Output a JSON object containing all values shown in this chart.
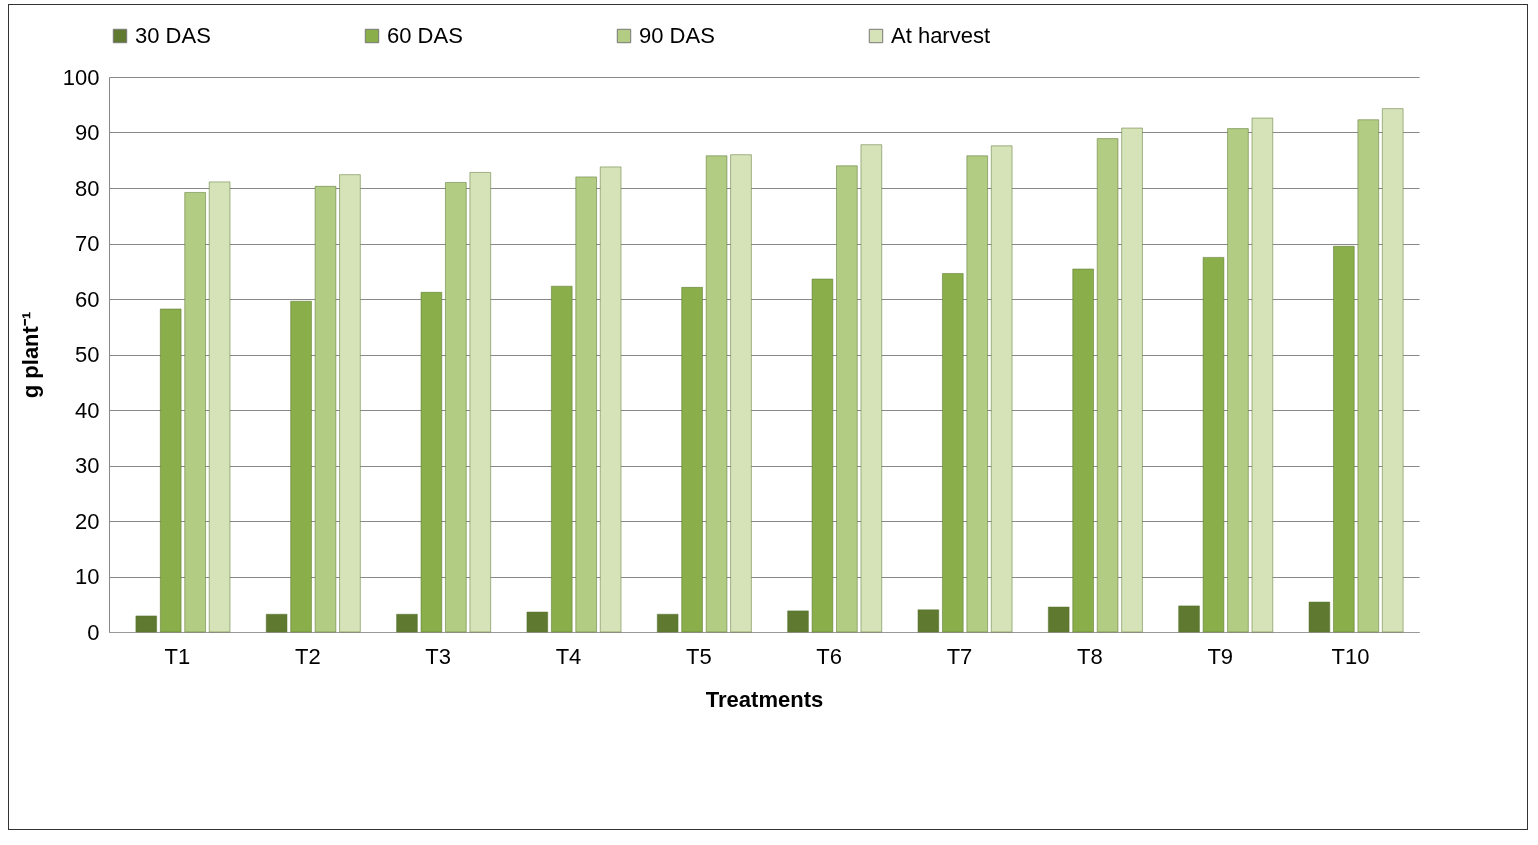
{
  "chart_data": {
    "type": "bar",
    "xlabel": "Treatments",
    "ylabel": "g plant⁻¹",
    "categories": [
      "T1",
      "T2",
      "T3",
      "T4",
      "T5",
      "T6",
      "T7",
      "T8",
      "T9",
      "T10"
    ],
    "series": [
      {
        "name": "30 DAS",
        "color": "#5f7a30",
        "values": [
          2.9,
          3.2,
          3.2,
          3.6,
          3.2,
          3.8,
          4.0,
          4.5,
          4.7,
          5.4
        ]
      },
      {
        "name": "60 DAS",
        "color": "#8aae4a",
        "values": [
          58.2,
          59.6,
          61.2,
          62.3,
          62.1,
          63.6,
          64.6,
          65.4,
          67.5,
          69.5
        ]
      },
      {
        "name": "90 DAS",
        "color": "#b3cc84",
        "values": [
          79.2,
          80.3,
          81.0,
          82.0,
          85.8,
          84.0,
          85.8,
          88.9,
          90.7,
          92.3
        ]
      },
      {
        "name": "At harvest",
        "color": "#d6e3b8",
        "values": [
          81.1,
          82.4,
          82.8,
          83.8,
          86.0,
          87.8,
          87.6,
          90.8,
          92.6,
          94.3
        ]
      }
    ],
    "ylim": [
      0,
      100
    ],
    "yticks": [
      0,
      10,
      20,
      30,
      40,
      50,
      60,
      70,
      80,
      90,
      100
    ],
    "grid": "y",
    "legend": "top"
  }
}
